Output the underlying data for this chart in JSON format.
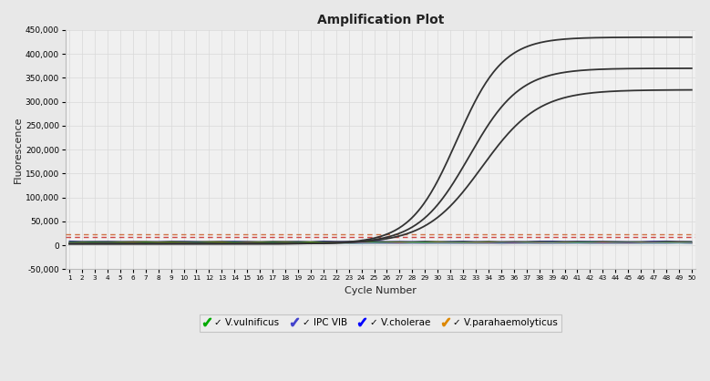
{
  "title": "Amplification Plot",
  "xlabel": "Cycle Number",
  "ylabel": "Fluorescence",
  "xlim": [
    1,
    50
  ],
  "ylim": [
    -50000,
    450000
  ],
  "yticks": [
    -50000,
    0,
    50000,
    100000,
    150000,
    200000,
    250000,
    300000,
    350000,
    400000,
    450000
  ],
  "background_color": "#e8e8e8",
  "plot_bg_color": "#f0f0f0",
  "grid_color": "#d8d8d8",
  "threshold_y1": 18000,
  "threshold_y2": 22000,
  "threshold_color1": "#cc3333",
  "threshold_color2": "#cc6633",
  "sigmoid_curves": [
    {
      "color": "#333333",
      "plateau": 435000,
      "midpoint": 31.5,
      "steepness": 0.55
    },
    {
      "color": "#333333",
      "plateau": 370000,
      "midpoint": 32.5,
      "steepness": 0.5
    },
    {
      "color": "#333333",
      "plateau": 325000,
      "midpoint": 33.5,
      "steepness": 0.45
    }
  ],
  "legend_items": [
    {
      "label": "V.vulnificus",
      "color": "#00aa00"
    },
    {
      "label": "IPC VIB",
      "color": "#4444cc"
    },
    {
      "label": "V.cholerae",
      "color": "#0000ff"
    },
    {
      "label": "V.parahaemolyticus",
      "color": "#dd8800"
    }
  ],
  "flat_line_colors": [
    "#333333",
    "#0000cc",
    "#00aa00",
    "#888800",
    "#dd8800",
    "#cc00cc",
    "#00aaaa",
    "#aaaaaa"
  ],
  "flat_line_baselines": [
    8000,
    7000,
    6000,
    5500,
    5000,
    4500,
    4000,
    3500
  ]
}
